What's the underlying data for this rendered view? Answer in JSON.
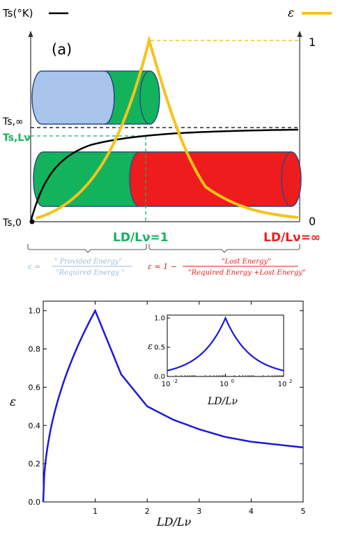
{
  "panel_a": {
    "label": "(a)",
    "ts_axis_title": "Ts(°K)",
    "eps_axis_title": "ε",
    "eps_top_tick": "1",
    "eps_bottom_tick": "0",
    "ts_inf_label": "Ts,∞",
    "ts_lv_label": "Ts,Lν",
    "ts_0_label": "Ts,0",
    "x_label_one": "LD/Lν=1",
    "x_label_inf": "LD/Lν=∞",
    "left_formula": {
      "prefix": "ε =",
      "numerator": "\" Provided Energy\"",
      "denominator": "\"Required Energy \""
    },
    "right_formula": {
      "prefix": "ε = 1 −",
      "numerator": "\"Lost Energy\"",
      "denominator": "\"Required Energy +Lost Energy\""
    },
    "colors": {
      "ts_curve": "#000000",
      "eps_curve": "#f7c21b",
      "cyl_blue": "#a9c4ea",
      "cyl_green": "#12b35c",
      "cyl_red": "#ee1c1c",
      "label_green": "#12b35c",
      "label_red": "#ee1c1c",
      "formula_blue": "#9db9e6",
      "formula_red": "#ee1c1c"
    }
  },
  "chart_data": [
    {
      "type": "line",
      "ylabel": "ε",
      "xlabel": "LD/Lν",
      "xlim": [
        0,
        5
      ],
      "ylim": [
        0,
        1.05
      ],
      "xticks": [
        "1",
        "2",
        "3",
        "4",
        "5"
      ],
      "yticks": [
        "0.0",
        "0.2",
        "0.4",
        "0.6",
        "0.8",
        "1.0"
      ],
      "line_color": "#1a1adb",
      "x": [
        0.0,
        0.1,
        0.25,
        0.5,
        0.75,
        1.0,
        1.5,
        2.0,
        2.5,
        3.0,
        3.5,
        4.0,
        4.5,
        5.0
      ],
      "y": [
        0.0,
        0.316,
        0.5,
        0.707,
        0.866,
        1.0,
        0.667,
        0.5,
        0.43,
        0.38,
        0.34,
        0.315,
        0.3,
        0.285
      ]
    },
    {
      "type": "line",
      "scale": "log-x",
      "ylabel": "ε",
      "xlabel": "LD/Lν",
      "xlim": [
        0.01,
        100
      ],
      "ylim": [
        0,
        1.05
      ],
      "xticks": [
        "10",
        "10",
        "10"
      ],
      "xtick_exps": [
        "-2",
        "0",
        "2"
      ],
      "yticks": [
        "0.0",
        "0.5",
        "1.0"
      ],
      "line_color": "#1a1adb",
      "x": [
        0.01,
        0.03,
        0.1,
        0.3,
        1.0,
        3.0,
        10.0,
        30.0,
        100.0
      ],
      "y": [
        0.03,
        0.08,
        0.25,
        0.55,
        1.0,
        0.55,
        0.25,
        0.08,
        0.03
      ]
    }
  ]
}
